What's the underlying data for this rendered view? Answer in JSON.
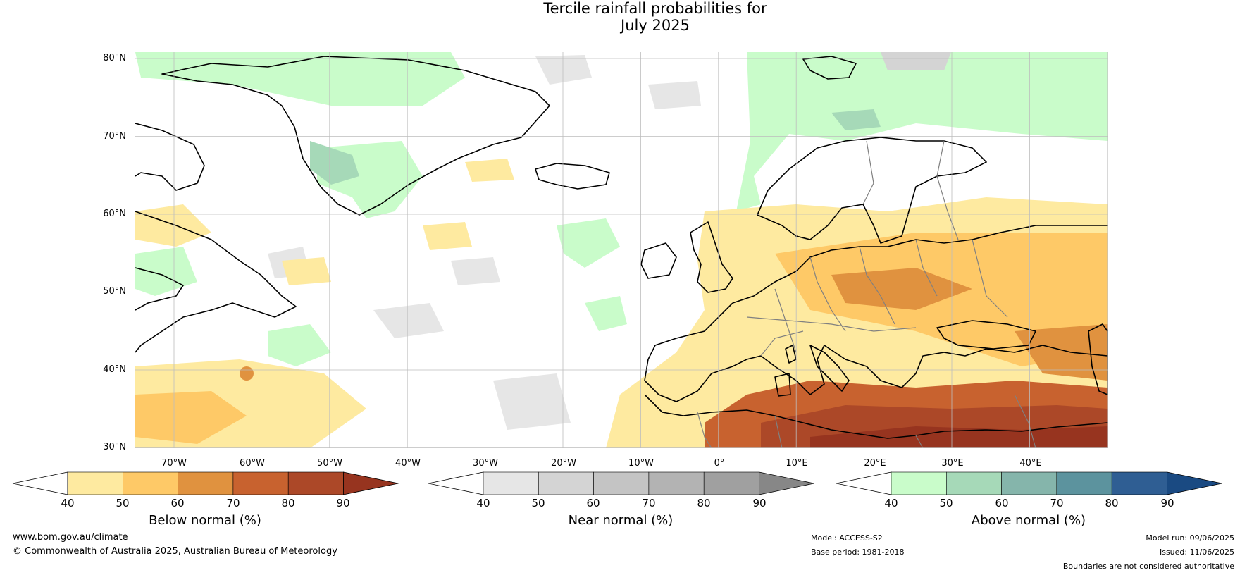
{
  "title": {
    "line1": "Tercile rainfall probabilities for",
    "line2": "July 2025"
  },
  "map": {
    "lat_labels": [
      "80°N",
      "70°N",
      "60°N",
      "50°N",
      "40°N",
      "30°N"
    ],
    "lon_labels": [
      "70°W",
      "60°W",
      "50°W",
      "40°W",
      "30°W",
      "20°W",
      "10°W",
      "0°",
      "10°E",
      "20°E",
      "30°E",
      "40°E"
    ],
    "ocean_color": "#ffffff",
    "coast_color": "#000000",
    "border_color": "#808080"
  },
  "colorbars": [
    {
      "label": "Below normal (%)",
      "ticks": [
        "40",
        "50",
        "60",
        "70",
        "80",
        "90"
      ],
      "colors": [
        "#ffffff",
        "#feeaa0",
        "#fec967",
        "#e0923f",
        "#c8622f",
        "#ac4828",
        "#97341f"
      ]
    },
    {
      "label": "Near normal (%)",
      "ticks": [
        "40",
        "50",
        "60",
        "70",
        "80",
        "90"
      ],
      "colors": [
        "#ffffff",
        "#e6e6e6",
        "#d4d4d4",
        "#c4c4c4",
        "#b3b3b3",
        "#a0a0a0",
        "#878787"
      ]
    },
    {
      "label": "Above normal (%)",
      "ticks": [
        "40",
        "50",
        "60",
        "70",
        "80",
        "90"
      ],
      "colors": [
        "#ffffff",
        "#c9fcca",
        "#a6d9b8",
        "#85b5ab",
        "#5c939e",
        "#2f5e93",
        "#1a4a82"
      ]
    }
  ],
  "footer": {
    "website": "www.bom.gov.au/climate",
    "copyright": "© Commonwealth of Australia 2025, Australian Bureau of Meteorology",
    "model": "Model: ACCESS-S2",
    "base_period": "Base period: 1981-2018",
    "model_run": "Model run: 09/06/2025",
    "issued": "Issued: 11/06/2025",
    "disclaimer": "Boundaries are not considered authoritative"
  }
}
